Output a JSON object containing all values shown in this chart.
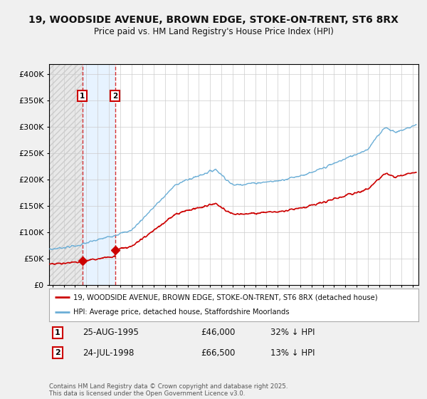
{
  "title_line1": "19, WOODSIDE AVENUE, BROWN EDGE, STOKE-ON-TRENT, ST6 8RX",
  "title_line2": "Price paid vs. HM Land Registry's House Price Index (HPI)",
  "yticks": [
    0,
    50000,
    100000,
    150000,
    200000,
    250000,
    300000,
    350000,
    400000
  ],
  "ytick_labels": [
    "£0",
    "£50K",
    "£100K",
    "£150K",
    "£200K",
    "£250K",
    "£300K",
    "£350K",
    "£400K"
  ],
  "ylim": [
    0,
    420000
  ],
  "xlim_start": 1992.7,
  "xlim_end": 2025.5,
  "sale1_year": 1995.65,
  "sale1_price": 46000,
  "sale2_year": 1998.55,
  "sale2_price": 66500,
  "hpi_color": "#6baed6",
  "price_color": "#cc0000",
  "shade_color": "#ddeeff",
  "background_color": "#f0f0f0",
  "plot_bg_color": "#ffffff",
  "legend_label_red": "19, WOODSIDE AVENUE, BROWN EDGE, STOKE-ON-TRENT, ST6 8RX (detached house)",
  "legend_label_blue": "HPI: Average price, detached house, Staffordshire Moorlands",
  "footer": "Contains HM Land Registry data © Crown copyright and database right 2025.\nThis data is licensed under the Open Government Licence v3.0."
}
